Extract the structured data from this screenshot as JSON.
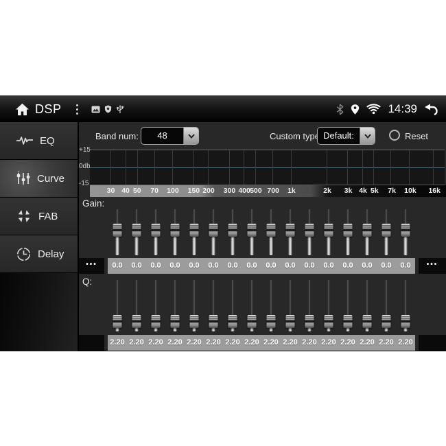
{
  "status_bar": {
    "app_title": "DSP",
    "time": "14:39",
    "accent_icons_color": "#d5d5d5"
  },
  "sidebar": {
    "items": [
      {
        "label": "EQ",
        "icon": "waveform-icon",
        "selected": false
      },
      {
        "label": "Curve",
        "icon": "sliders-icon",
        "selected": true
      },
      {
        "label": "FAB",
        "icon": "fader-arrows-icon",
        "selected": false
      },
      {
        "label": "Delay",
        "icon": "clock-icon",
        "selected": false
      }
    ]
  },
  "controls": {
    "band_num_label": "Band num:",
    "band_num_value": "48",
    "custom_type_label": "Custom type:",
    "custom_type_value": "Default:",
    "reset_label": "Reset"
  },
  "graph": {
    "y_labels": [
      "+15",
      "0db",
      "-15"
    ],
    "zero_line_color": "#41768c",
    "curve_db": 0,
    "freq_ticks": [
      {
        "label": "30",
        "hz": 30
      },
      {
        "label": "40",
        "hz": 40
      },
      {
        "label": "50",
        "hz": 50
      },
      {
        "label": "70",
        "hz": 70
      },
      {
        "label": "100",
        "hz": 100
      },
      {
        "label": "150",
        "hz": 150
      },
      {
        "label": "200",
        "hz": 200
      },
      {
        "label": "300",
        "hz": 300
      },
      {
        "label": "400",
        "hz": 400
      },
      {
        "label": "500",
        "hz": 500
      },
      {
        "label": "700",
        "hz": 700
      },
      {
        "label": "1k",
        "hz": 1000
      },
      {
        "label": "2k",
        "hz": 2000
      },
      {
        "label": "3k",
        "hz": 3000
      },
      {
        "label": "4k",
        "hz": 4000
      },
      {
        "label": "5k",
        "hz": 5000
      },
      {
        "label": "7k",
        "hz": 7000
      },
      {
        "label": "10k",
        "hz": 10000
      },
      {
        "label": "16k",
        "hz": 16000
      }
    ]
  },
  "gain": {
    "label": "Gain:",
    "more_left": "•••",
    "more_right": "•••",
    "values": [
      "0.0",
      "0.0",
      "0.0",
      "0.0",
      "0.0",
      "0.0",
      "0.0",
      "0.0",
      "0.0",
      "0.0",
      "0.0",
      "0.0",
      "0.0",
      "0.0",
      "0.0",
      "0.0"
    ]
  },
  "q": {
    "label": "Q:",
    "values": [
      "2.20",
      "2.20",
      "2.20",
      "2.20",
      "2.20",
      "2.20",
      "2.20",
      "2.20",
      "2.20",
      "2.20",
      "2.20",
      "2.20",
      "2.20",
      "2.20",
      "2.20",
      "2.20"
    ]
  }
}
